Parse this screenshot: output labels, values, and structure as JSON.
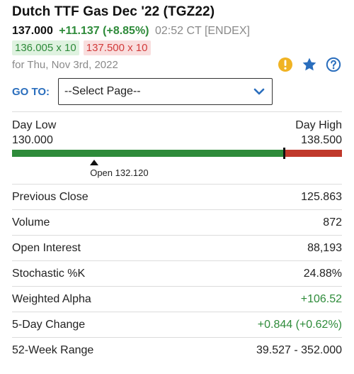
{
  "header": {
    "title": "Dutch TTF Gas Dec '22 (TGZ22)",
    "last": "137.000",
    "change": "+11.137 (+8.85%)",
    "time": "02:52 CT [ENDEX]",
    "bid": "136.005 x 10",
    "ask": "137.500 x 10",
    "date": "for Thu, Nov 3rd, 2022"
  },
  "icons": [
    "alert-icon",
    "star-icon",
    "help-icon"
  ],
  "colors": {
    "positive": "#2e8b3a",
    "negative": "#c0392b",
    "link": "#2a6ebd",
    "alert": "#f0b323"
  },
  "goto": {
    "label": "GO TO:",
    "selected": "--Select Page--"
  },
  "day_range": {
    "low_label": "Day Low",
    "high_label": "Day High",
    "low": "130.000",
    "high": "138.500",
    "open_label": "Open 132.120",
    "low_value": 130.0,
    "high_value": 138.5,
    "open_value": 132.12,
    "last_value": 137.0
  },
  "stats": [
    {
      "label": "Previous Close",
      "value": "125.863",
      "positive": false
    },
    {
      "label": "Volume",
      "value": "872",
      "positive": false
    },
    {
      "label": "Open Interest",
      "value": "88,193",
      "positive": false
    },
    {
      "label": "Stochastic %K",
      "value": "24.88%",
      "positive": false
    },
    {
      "label": "Weighted Alpha",
      "value": "+106.52",
      "positive": true
    },
    {
      "label": "5-Day Change",
      "value": "+0.844 (+0.62%)",
      "positive": true
    },
    {
      "label": "52-Week Range",
      "value": "39.527 - 352.000",
      "positive": false
    }
  ]
}
